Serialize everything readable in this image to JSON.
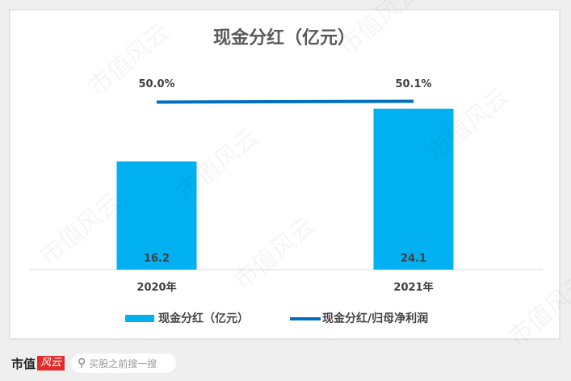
{
  "chart_data": {
    "type": "bar+line",
    "title": "现金分红（亿元）",
    "categories": [
      "2020年",
      "2021年"
    ],
    "series": [
      {
        "name": "现金分红（亿元）",
        "type": "bar",
        "values": [
          16.2,
          24.1
        ],
        "labels": [
          "16.2",
          "24.1"
        ],
        "color": "#00b0f0"
      },
      {
        "name": "现金分红/归母净利润",
        "type": "line",
        "values": [
          50.0,
          50.1
        ],
        "labels": [
          "50.0%",
          "50.1%"
        ],
        "color": "#0070c0"
      }
    ],
    "legend": "bottom",
    "grid": false
  },
  "watermark": "市值风云",
  "footer": {
    "brand": "市值",
    "logo": "风云",
    "search_placeholder": "买股之前搜一搜"
  }
}
